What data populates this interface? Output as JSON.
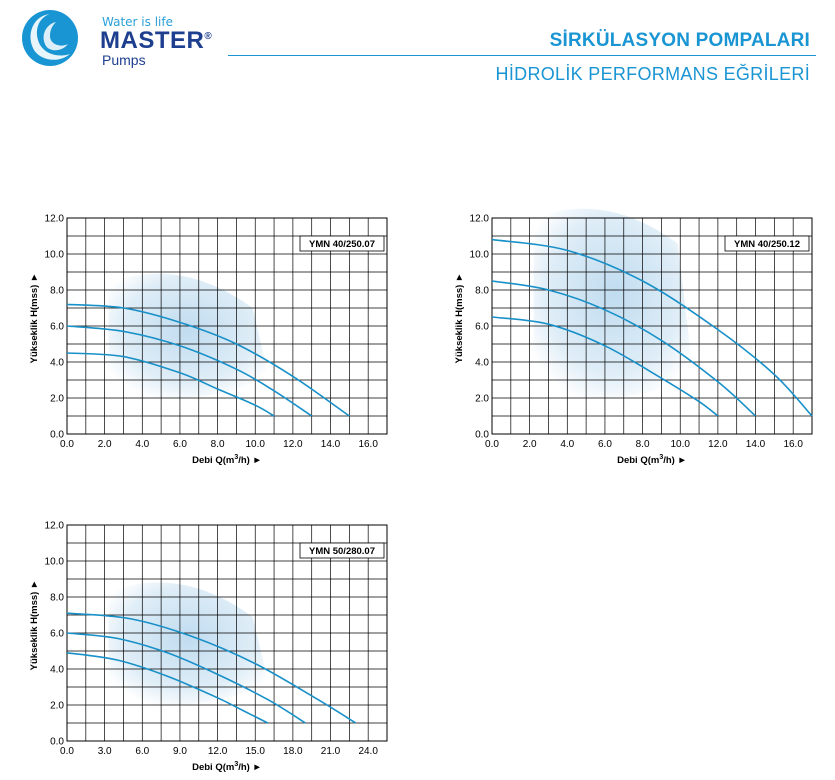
{
  "header": {
    "logo_tagline": "Water is life",
    "logo_name": "MASTER",
    "logo_reg": "®",
    "logo_sub": "Pumps",
    "title": "SİRKÜLASYON POMPALARI",
    "subtitle": "HİDROLİK PERFORMANS EĞRİLERİ"
  },
  "colors": {
    "accent": "#1a95d3",
    "curve": "#1890c8",
    "brand": "#1e3f8f",
    "grid": "#000000",
    "shade": "#b9d8ee"
  },
  "chart_data": [
    {
      "type": "line",
      "label": "YMN 40/250.07",
      "xlabel": "Debi Q(m3/h) ►",
      "ylabel": "Yükseklik H(mss) ►",
      "xlim": [
        0,
        17
      ],
      "ylim": [
        0,
        12
      ],
      "xticks": [
        "0.0",
        "2.0",
        "4.0",
        "6.0",
        "8.0",
        "10.0",
        "12.0",
        "14.0",
        "16.0"
      ],
      "yticks": [
        "0.0",
        "2.0",
        "4.0",
        "6.0",
        "8.0",
        "10.0",
        "12.0"
      ],
      "series": [
        {
          "x": [
            0,
            3,
            6,
            9,
            12,
            15
          ],
          "values": [
            7.2,
            7.0,
            6.2,
            5.0,
            3.2,
            1.0
          ]
        },
        {
          "x": [
            0,
            3,
            6,
            9,
            11,
            13
          ],
          "values": [
            6.0,
            5.7,
            4.9,
            3.6,
            2.4,
            1.0
          ]
        },
        {
          "x": [
            0,
            3,
            6,
            8,
            10,
            11
          ],
          "values": [
            4.5,
            4.3,
            3.4,
            2.5,
            1.6,
            1.0
          ]
        }
      ]
    },
    {
      "type": "line",
      "label": "YMN 40/250.12",
      "xlabel": "Debi Q(m3/h) ►",
      "ylabel": "Yükseklik H(mss) ►",
      "xlim": [
        0,
        17
      ],
      "ylim": [
        0,
        12
      ],
      "xticks": [
        "0.0",
        "2.0",
        "4.0",
        "6.0",
        "8.0",
        "10.0",
        "12.0",
        "14.0",
        "16.0"
      ],
      "yticks": [
        "0.0",
        "2.0",
        "4.0",
        "6.0",
        "8.0",
        "10.0",
        "12.0"
      ],
      "series": [
        {
          "x": [
            0,
            4,
            8,
            12,
            15,
            17
          ],
          "values": [
            10.8,
            10.2,
            8.5,
            5.8,
            3.3,
            1.0
          ]
        },
        {
          "x": [
            0,
            3,
            6,
            9,
            12,
            14
          ],
          "values": [
            8.5,
            8.0,
            6.9,
            5.2,
            2.9,
            1.0
          ]
        },
        {
          "x": [
            0,
            3,
            6,
            9,
            11,
            12
          ],
          "values": [
            6.5,
            6.1,
            4.9,
            3.1,
            1.8,
            1.0
          ]
        }
      ]
    },
    {
      "type": "line",
      "label": "YMN 50/280.07",
      "xlabel": "Debi Q(m3/h) ►",
      "ylabel": "Yükseklik H(mss) ►",
      "xlim": [
        0,
        25.5
      ],
      "ylim": [
        0,
        12
      ],
      "xticks": [
        "0.0",
        "3.0",
        "6.0",
        "9.0",
        "12.0",
        "15.0",
        "18.0",
        "21.0",
        "24.0"
      ],
      "yticks": [
        "0.0",
        "2.0",
        "4.0",
        "6.0",
        "8.0",
        "10.0",
        "12.0"
      ],
      "series": [
        {
          "x": [
            0,
            5,
            10,
            15,
            20,
            23
          ],
          "values": [
            7.1,
            6.8,
            5.8,
            4.3,
            2.3,
            1.0
          ]
        },
        {
          "x": [
            0,
            4,
            8,
            12,
            16,
            19
          ],
          "values": [
            6.0,
            5.7,
            4.9,
            3.7,
            2.3,
            1.0
          ]
        },
        {
          "x": [
            0,
            4,
            8,
            12,
            14,
            16
          ],
          "values": [
            4.9,
            4.5,
            3.6,
            2.4,
            1.7,
            1.0
          ]
        }
      ]
    }
  ]
}
